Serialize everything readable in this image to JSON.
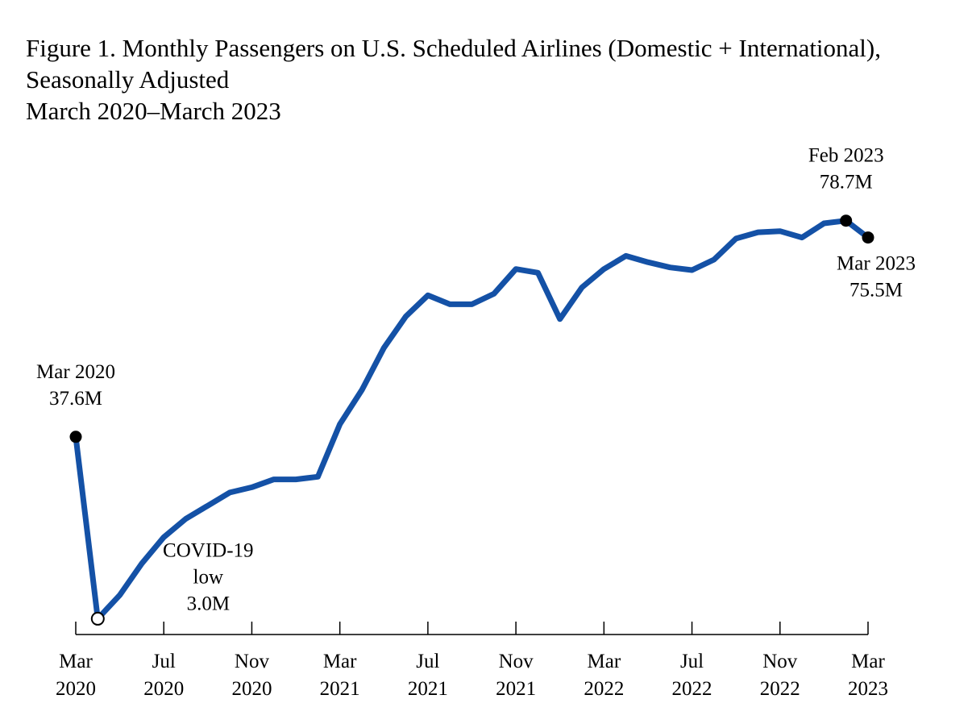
{
  "title": {
    "line1": "Figure 1. Monthly Passengers on U.S. Scheduled Airlines (Domestic + International),",
    "line2": "Seasonally Adjusted",
    "line3": "March 2020–March 2023"
  },
  "chart_data": {
    "type": "line",
    "title": "Figure 1. Monthly Passengers on U.S. Scheduled Airlines (Domestic + International), Seasonally Adjusted March 2020–March 2023",
    "xlabel": "",
    "ylabel": "",
    "ylim": [
      0,
      90
    ],
    "grid": false,
    "line_color": "#1451a6",
    "x": [
      "Mar 2020",
      "Apr 2020",
      "May 2020",
      "Jun 2020",
      "Jul 2020",
      "Aug 2020",
      "Sep 2020",
      "Oct 2020",
      "Nov 2020",
      "Dec 2020",
      "Jan 2021",
      "Feb 2021",
      "Mar 2021",
      "Apr 2021",
      "May 2021",
      "Jun 2021",
      "Jul 2021",
      "Aug 2021",
      "Sep 2021",
      "Oct 2021",
      "Nov 2021",
      "Dec 2021",
      "Jan 2022",
      "Feb 2022",
      "Mar 2022",
      "Apr 2022",
      "May 2022",
      "Jun 2022",
      "Jul 2022",
      "Aug 2022",
      "Sep 2022",
      "Oct 2022",
      "Nov 2022",
      "Dec 2022",
      "Jan 2023",
      "Feb 2023",
      "Mar 2023"
    ],
    "series": [
      {
        "values": [
          37.6,
          3.0,
          7.5,
          13.5,
          18.5,
          22.0,
          24.5,
          27.0,
          28.0,
          29.5,
          29.5,
          30.0,
          40.0,
          46.5,
          54.5,
          60.5,
          64.5,
          62.8,
          62.8,
          64.8,
          69.5,
          68.8,
          60.0,
          66.0,
          69.5,
          72.0,
          70.8,
          69.8,
          69.3,
          71.3,
          75.3,
          76.5,
          76.7,
          75.5,
          78.2,
          78.7,
          75.5
        ]
      }
    ],
    "x_ticks": [
      {
        "index": 0,
        "month": "Mar",
        "year": "2020"
      },
      {
        "index": 4,
        "month": "Jul",
        "year": "2020"
      },
      {
        "index": 8,
        "month": "Nov",
        "year": "2020"
      },
      {
        "index": 12,
        "month": "Mar",
        "year": "2021"
      },
      {
        "index": 16,
        "month": "Jul",
        "year": "2021"
      },
      {
        "index": 20,
        "month": "Nov",
        "year": "2021"
      },
      {
        "index": 24,
        "month": "Mar",
        "year": "2022"
      },
      {
        "index": 28,
        "month": "Jul",
        "year": "2022"
      },
      {
        "index": 32,
        "month": "Nov",
        "year": "2022"
      },
      {
        "index": 36,
        "month": "Mar",
        "year": "2023"
      }
    ],
    "annotations": [
      {
        "index": 0,
        "lines": [
          "Mar 2020",
          "37.6M"
        ],
        "marker": "filled",
        "position": "above"
      },
      {
        "index": 1,
        "lines": [
          "COVID-19",
          "low",
          "3.0M"
        ],
        "marker": "open",
        "position": "right"
      },
      {
        "index": 35,
        "lines": [
          "Feb 2023",
          "78.7M"
        ],
        "marker": "filled",
        "position": "above"
      },
      {
        "index": 36,
        "lines": [
          "Mar 2023",
          "75.5M"
        ],
        "marker": "filled",
        "position": "below"
      }
    ]
  }
}
